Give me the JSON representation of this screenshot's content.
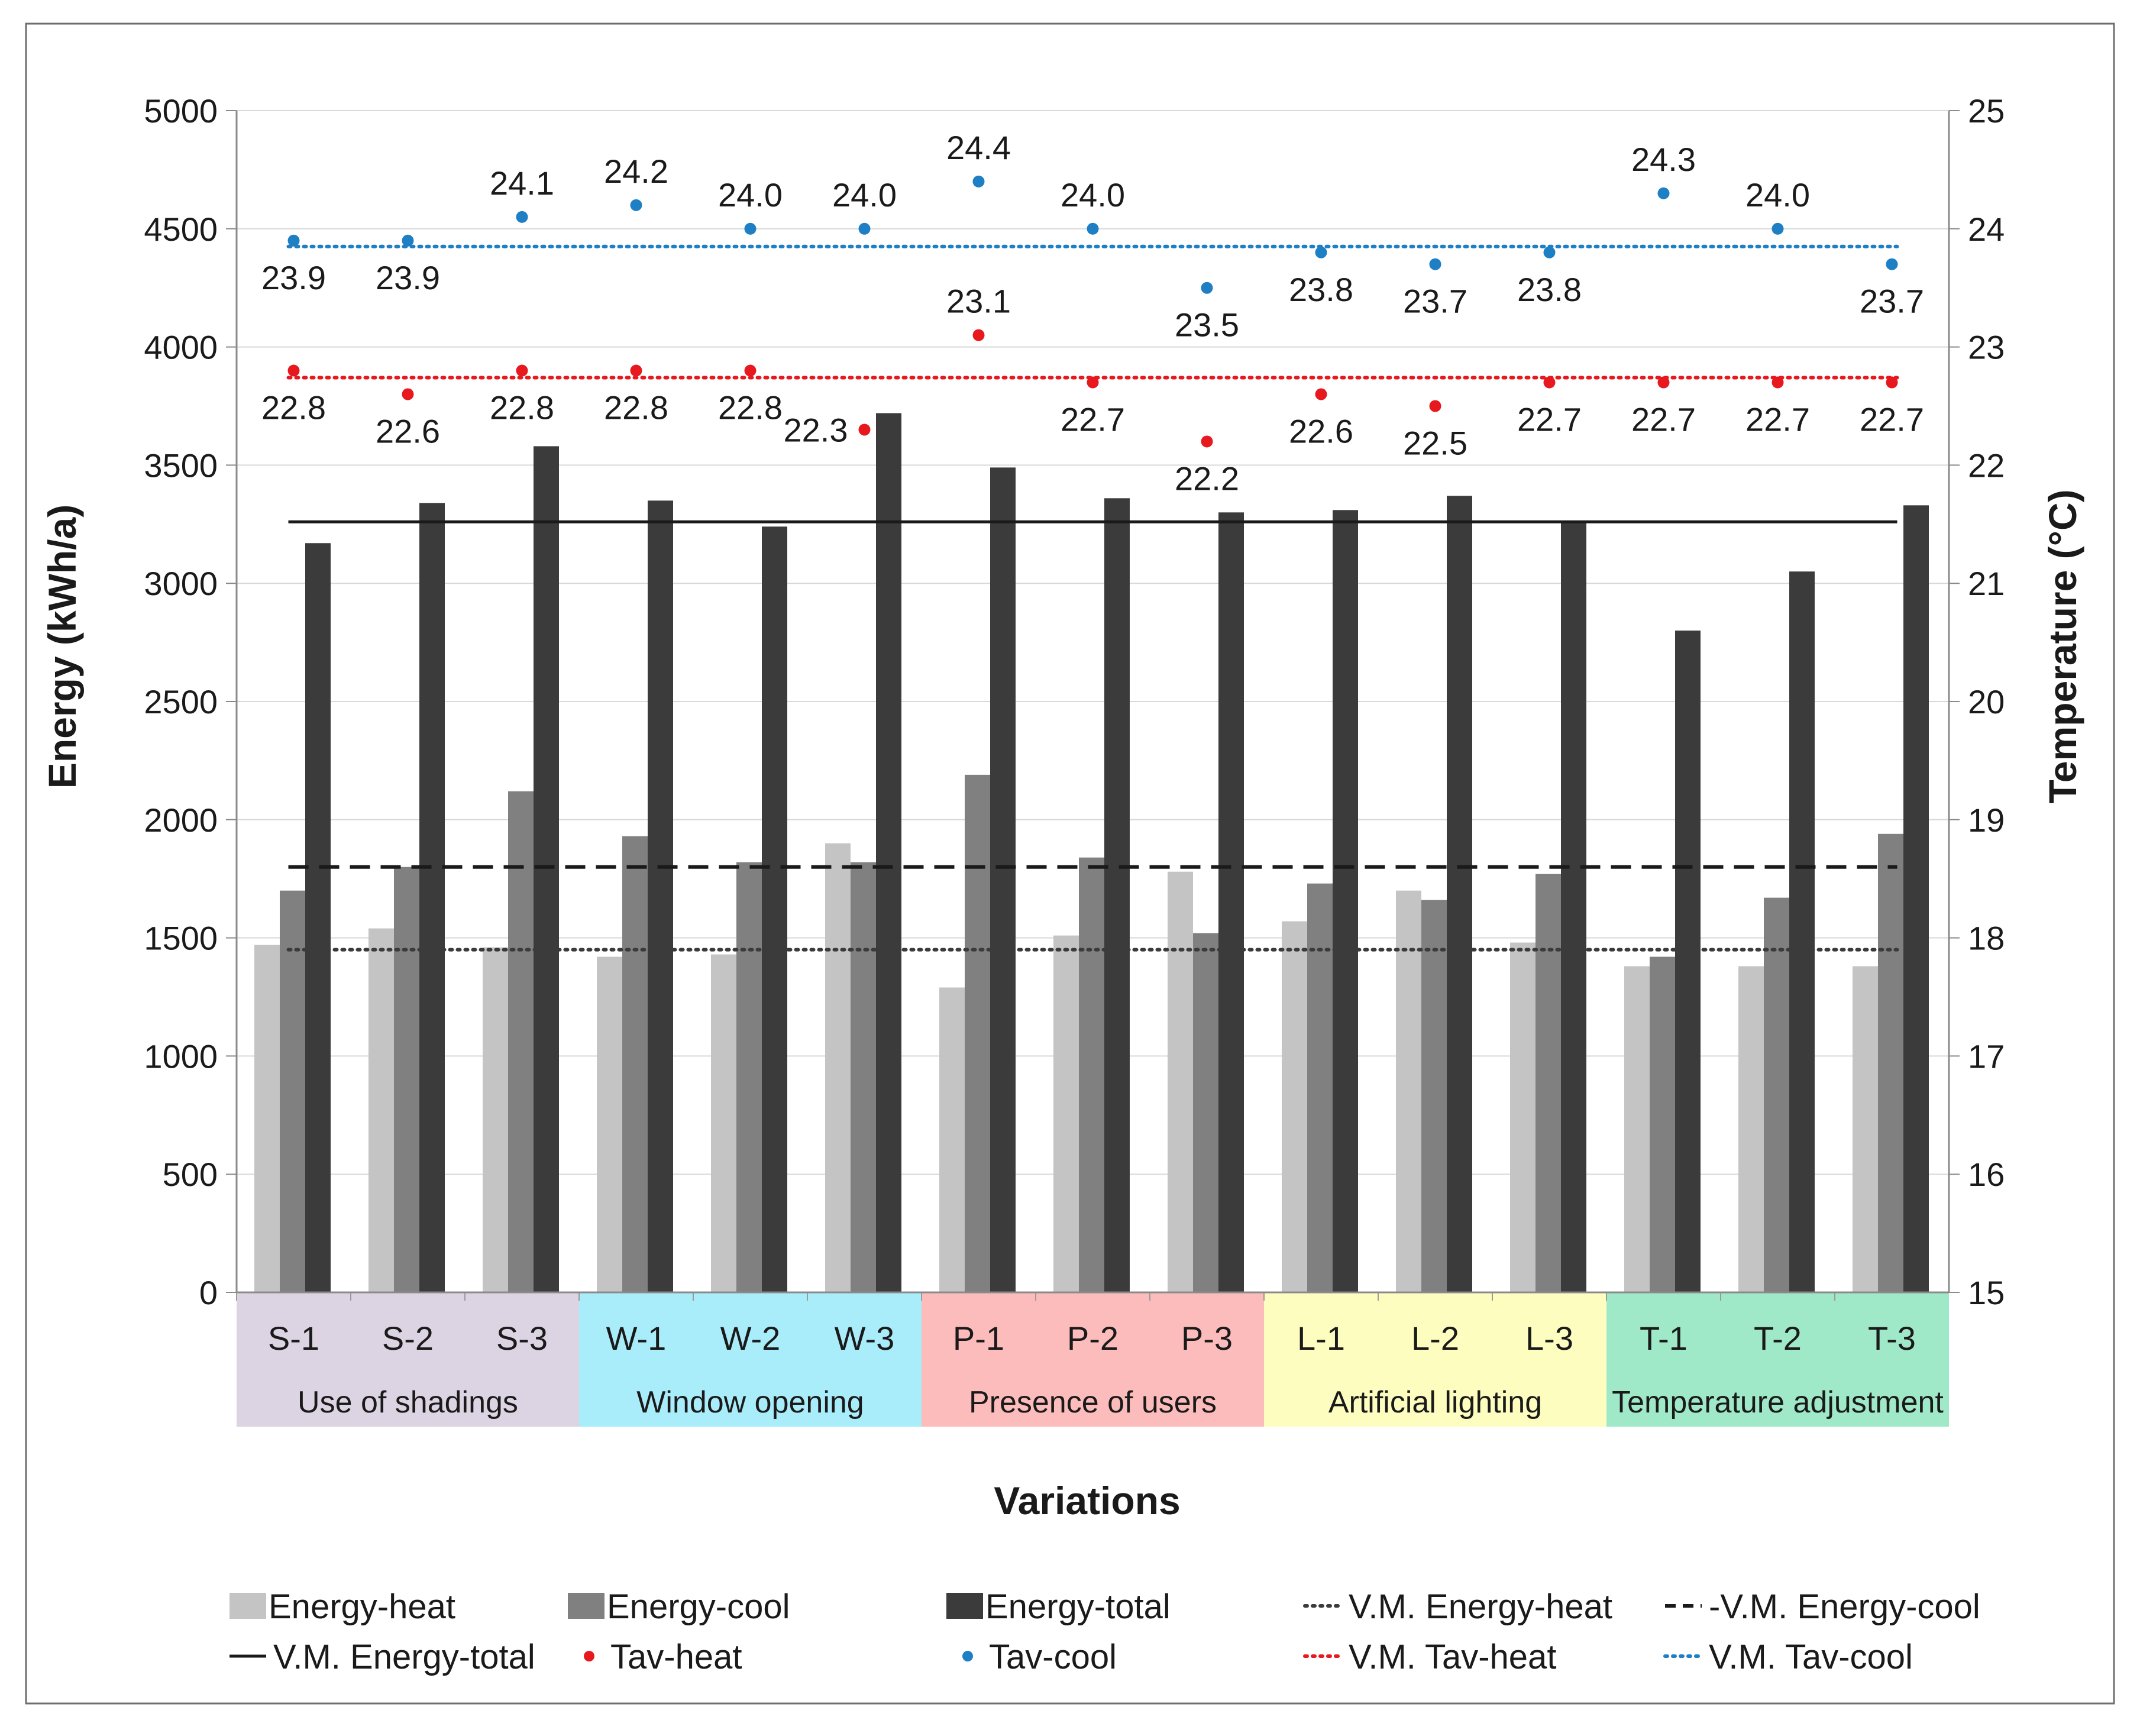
{
  "chart_data": {
    "type": "bar",
    "xlabel": "Variations",
    "ylabel": "Energy (kWh/a)",
    "y2label": "Temperature (°C)",
    "ylim": [
      0,
      5000
    ],
    "y2lim": [
      15,
      25
    ],
    "yticks": [
      "0",
      "500",
      "1000",
      "1500",
      "2000",
      "2500",
      "3000",
      "3500",
      "4000",
      "4500",
      "5000"
    ],
    "y2ticks": [
      "15",
      "16",
      "17",
      "18",
      "19",
      "20",
      "21",
      "22",
      "23",
      "24",
      "25"
    ],
    "grid": true,
    "legend_position": "bottom",
    "categories": [
      "S-1",
      "S-2",
      "S-3",
      "W-1",
      "W-2",
      "W-3",
      "P-1",
      "P-2",
      "P-3",
      "L-1",
      "L-2",
      "L-3",
      "T-1",
      "T-2",
      "T-3"
    ],
    "groups": [
      {
        "label": "Use of shadings",
        "color": "#dcd4e3"
      },
      {
        "label": "Window opening",
        "color": "#a9ecfa"
      },
      {
        "label": "Presence of users",
        "color": "#fcbcbc"
      },
      {
        "label": "Artificial lighting",
        "color": "#fdfdbf"
      },
      {
        "label": "Temperature adjustment",
        "color": "#9fe8c8"
      }
    ],
    "series": [
      {
        "name": "Energy-heat",
        "axis": "left",
        "color": "#c4c4c4",
        "values": [
          1470,
          1540,
          1460,
          1420,
          1430,
          1900,
          1290,
          1510,
          1780,
          1570,
          1700,
          1480,
          1380,
          1380,
          1380
        ]
      },
      {
        "name": "Energy-cool",
        "axis": "left",
        "color": "#808080",
        "values": [
          1700,
          1800,
          2120,
          1930,
          1820,
          1820,
          2190,
          1840,
          1520,
          1730,
          1660,
          1770,
          1420,
          1670,
          1940
        ]
      },
      {
        "name": "Energy-total",
        "axis": "left",
        "color": "#3b3b3b",
        "values": [
          3170,
          3340,
          3580,
          3350,
          3240,
          3720,
          3490,
          3360,
          3300,
          3310,
          3370,
          3260,
          2800,
          3050,
          3330
        ]
      },
      {
        "name": "Tav-heat",
        "axis": "right",
        "color": "#e8191e",
        "values": [
          22.8,
          22.6,
          22.8,
          22.8,
          22.8,
          22.3,
          23.1,
          22.7,
          22.2,
          22.6,
          22.5,
          22.7,
          22.7,
          22.7,
          22.7
        ],
        "labels": [
          "22.8",
          "22.6",
          "22.8",
          "22.8",
          "22.8",
          "22.3",
          "23.1",
          "22.7",
          "22.2",
          "22.6",
          "22.5",
          "22.7",
          "22.7",
          "22.7",
          "22.7"
        ]
      },
      {
        "name": "Tav-cool",
        "axis": "right",
        "color": "#1f7fc4",
        "values": [
          23.9,
          23.9,
          24.1,
          24.2,
          24.0,
          24.0,
          24.4,
          24.0,
          23.5,
          23.8,
          23.7,
          23.8,
          24.3,
          24.0,
          23.7
        ],
        "labels": [
          "23.9",
          "23.9",
          "24.1",
          "24.2",
          "24.0",
          "24.0",
          "24.4",
          "24.0",
          "23.5",
          "23.8",
          "23.7",
          "23.8",
          "24.3",
          "24.0",
          "23.7"
        ]
      }
    ],
    "reference_lines": [
      {
        "name": "V.M. Energy-heat",
        "axis": "left",
        "value": 1450,
        "style": "dotted",
        "color": "#3b3b3b"
      },
      {
        "name": "V.M. Energy-cool",
        "axis": "left",
        "value": 1800,
        "style": "dashed",
        "color": "#1a1a1a"
      },
      {
        "name": "V.M. Energy-total",
        "axis": "left",
        "value": 3260,
        "style": "solid",
        "color": "#1a1a1a"
      },
      {
        "name": "V.M. Tav-heat",
        "axis": "right",
        "value": 22.74,
        "style": "dotted",
        "color": "#e8191e"
      },
      {
        "name": "V.M. Tav-cool",
        "axis": "right",
        "value": 23.85,
        "style": "dotted",
        "color": "#1f7fc4"
      }
    ],
    "legend": [
      {
        "label": "Energy-heat",
        "kind": "box",
        "color": "#c4c4c4"
      },
      {
        "label": "Energy-cool",
        "kind": "box",
        "color": "#808080"
      },
      {
        "label": "Energy-total",
        "kind": "box",
        "color": "#3b3b3b"
      },
      {
        "label": "V.M. Energy-heat",
        "kind": "line",
        "style": "dotted",
        "color": "#3b3b3b"
      },
      {
        "label": "-V.M. Energy-cool",
        "kind": "line",
        "style": "dashed",
        "color": "#1a1a1a"
      },
      {
        "label": "V.M. Energy-total",
        "kind": "line",
        "style": "solid",
        "color": "#1a1a1a"
      },
      {
        "label": "Tav-heat",
        "kind": "dot",
        "color": "#e8191e"
      },
      {
        "label": "Tav-cool",
        "kind": "dot",
        "color": "#1f7fc4"
      },
      {
        "label": "V.M. Tav-heat",
        "kind": "line",
        "style": "dotted",
        "color": "#e8191e"
      },
      {
        "label": "V.M. Tav-cool",
        "kind": "line",
        "style": "dotted",
        "color": "#1f7fc4"
      }
    ]
  }
}
